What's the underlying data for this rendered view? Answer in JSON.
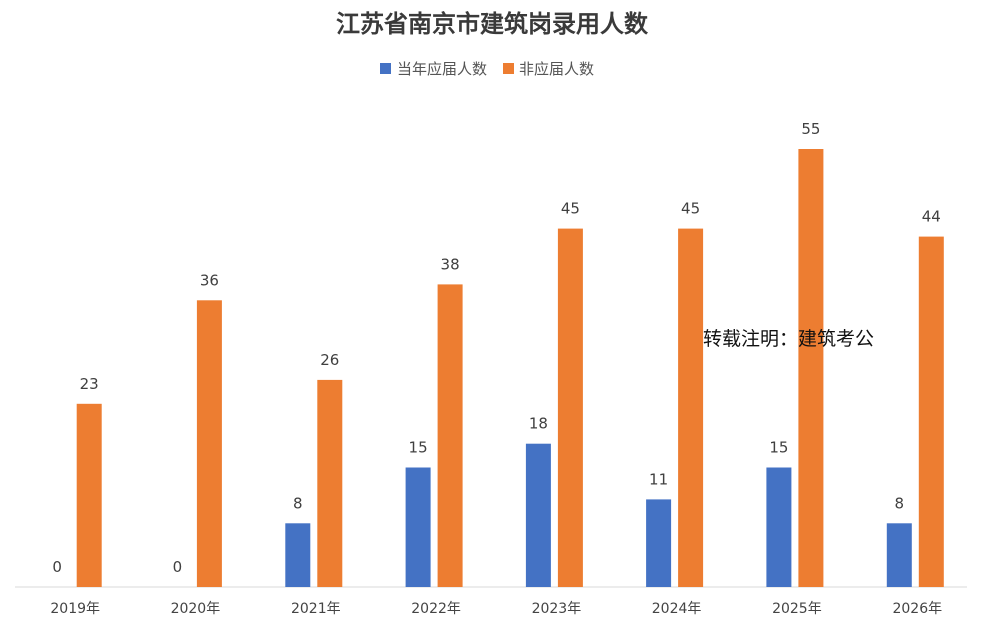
{
  "chart_data": {
    "type": "bar",
    "title": "江苏省南京市建筑岗录用人数",
    "categories": [
      "2019年",
      "2020年",
      "2021年",
      "2022年",
      "2023年",
      "2024年",
      "2025年",
      "2026年"
    ],
    "series": [
      {
        "name": "当年应届人数",
        "color": "#4472C4",
        "values": [
          0,
          0,
          8,
          15,
          18,
          11,
          15,
          8
        ]
      },
      {
        "name": "非应届人数",
        "color": "#ED7D31",
        "values": [
          23,
          36,
          26,
          38,
          45,
          45,
          55,
          44
        ]
      }
    ],
    "ylim": [
      0,
      55
    ],
    "xlabel": "",
    "ylabel": "",
    "grid": false,
    "legend_position": "top-center",
    "annotations": [
      "转载注明：建筑考公"
    ]
  }
}
